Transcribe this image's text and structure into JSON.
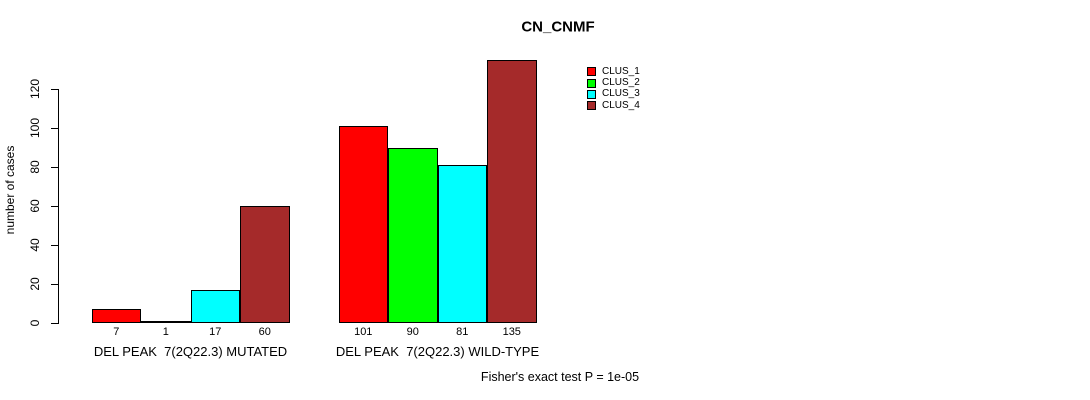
{
  "chart_data": {
    "type": "bar",
    "title": "CN_CNMF",
    "ylabel": "number of cases",
    "xlabel": "",
    "yticks": [
      0,
      20,
      40,
      60,
      80,
      100,
      120
    ],
    "ylim": [
      0,
      139
    ],
    "grid": false,
    "legend_position": "top-right",
    "categories": [
      "DEL PEAK  7(2Q22.3) MUTATED",
      "DEL PEAK  7(2Q22.3) WILD-TYPE"
    ],
    "series": [
      {
        "name": "CLUS_1",
        "color": "#FF0000",
        "values": [
          7,
          101
        ]
      },
      {
        "name": "CLUS_2",
        "color": "#00FF00",
        "values": [
          1,
          90
        ]
      },
      {
        "name": "CLUS_3",
        "color": "#00FFFF",
        "values": [
          17,
          81
        ]
      },
      {
        "name": "CLUS_4",
        "color": "#A52A2A",
        "values": [
          60,
          135
        ]
      }
    ],
    "bar_value_labels": [
      [
        "7",
        "1",
        "17",
        "60"
      ],
      [
        "101",
        "90",
        "81",
        "135"
      ]
    ],
    "footnote": "Fisher's exact test P = 1e-05",
    "axis_color": "#000000",
    "background_color": "#ffffff"
  }
}
